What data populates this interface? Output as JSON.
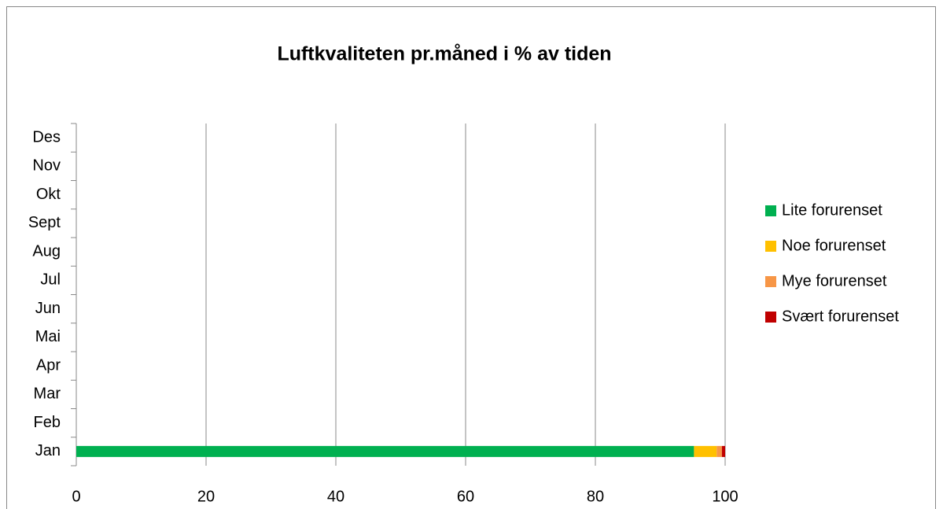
{
  "chart_data": {
    "type": "stacked_bar_horizontal",
    "title": "Luftkvaliteten pr.måned i % av tiden",
    "categories": [
      "Jan",
      "Feb",
      "Mar",
      "Apr",
      "Mai",
      "Jun",
      "Jul",
      "Aug",
      "Sept",
      "Okt",
      "Nov",
      "Des"
    ],
    "series": [
      {
        "name": "Lite forurenset",
        "color": "#00b050",
        "values": [
          95.2,
          null,
          null,
          null,
          null,
          null,
          null,
          null,
          null,
          null,
          null,
          null
        ]
      },
      {
        "name": "Noe forurenset",
        "color": "#ffc000",
        "values": [
          3.5,
          null,
          null,
          null,
          null,
          null,
          null,
          null,
          null,
          null,
          null,
          null
        ]
      },
      {
        "name": "Mye forurenset",
        "color": "#f79646",
        "values": [
          0.8,
          null,
          null,
          null,
          null,
          null,
          null,
          null,
          null,
          null,
          null,
          null
        ]
      },
      {
        "name": "Svært forurenset",
        "color": "#c00000",
        "values": [
          0.5,
          null,
          null,
          null,
          null,
          null,
          null,
          null,
          null,
          null,
          null,
          null
        ]
      }
    ],
    "xlim": [
      0,
      100
    ],
    "xticks": [
      0,
      20,
      40,
      60,
      80,
      100
    ],
    "grid": true,
    "legend": "right"
  }
}
